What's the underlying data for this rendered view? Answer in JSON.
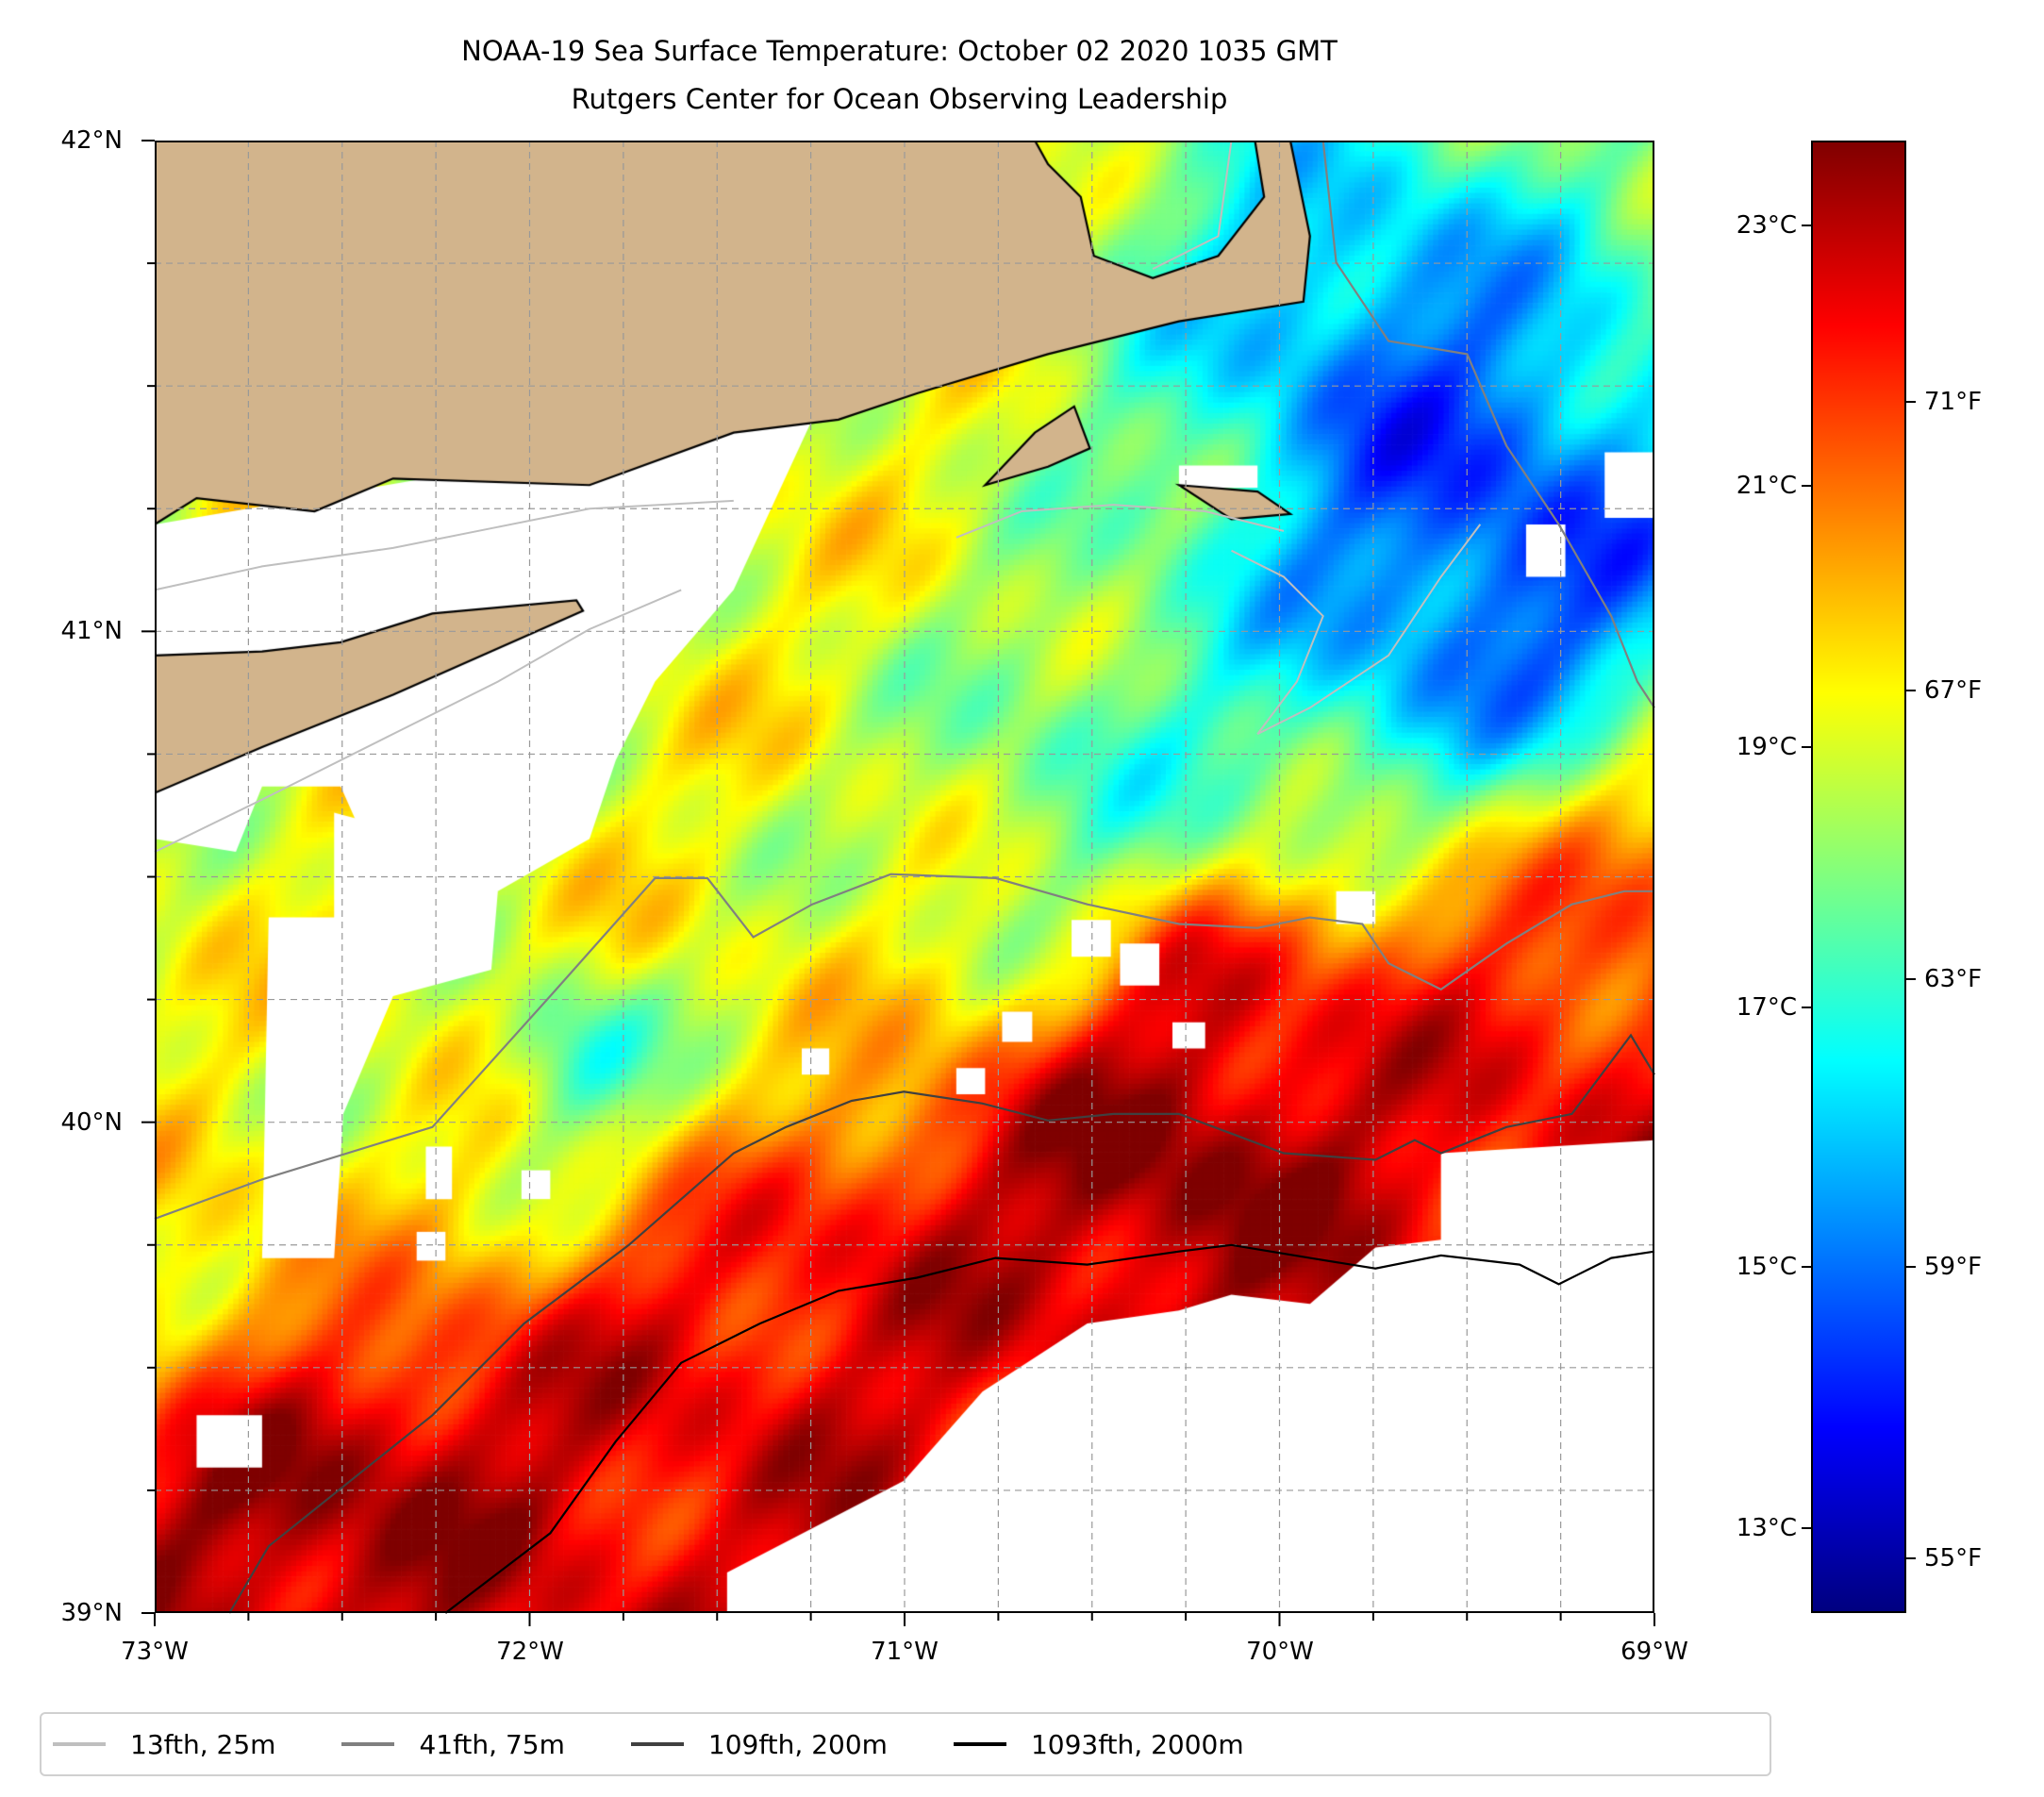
{
  "title": {
    "line1": "NOAA-19 Sea Surface Temperature: October 02 2020 1035 GMT",
    "line2": "Rutgers Center for Ocean Observing Leadership"
  },
  "chart_data": {
    "type": "heatmap",
    "title": "NOAA-19 Sea Surface Temperature: October 02 2020 1035 GMT",
    "subtitle": "Rutgers Center for Ocean Observing Leadership",
    "xlim": [
      -73,
      -69
    ],
    "ylim": [
      39,
      42
    ],
    "x_ticks": [
      "73°W",
      "72°W",
      "71°W",
      "70°W",
      "69°W"
    ],
    "y_ticks": [
      "42°N",
      "41°N",
      "40°N",
      "39°N"
    ],
    "grid": true,
    "colorbar": {
      "colormap": "jet",
      "range_c": [
        12.35,
        23.65
      ],
      "ticks_c": [
        "23°C",
        "21°C",
        "19°C",
        "17°C",
        "15°C",
        "13°C"
      ],
      "ticks_f": [
        "71°F",
        "67°F",
        "63°F",
        "59°F",
        "55°F"
      ]
    },
    "land_color": "#d2b48c",
    "legend": {
      "placement": "bottom",
      "items": [
        {
          "label": "13fth, 25m",
          "color": "#bfbfbf"
        },
        {
          "label": "41fth, 75m",
          "color": "#808080"
        },
        {
          "label": "109fth, 200m",
          "color": "#404040"
        },
        {
          "label": "1093fth, 2000m",
          "color": "#000000"
        }
      ]
    }
  }
}
